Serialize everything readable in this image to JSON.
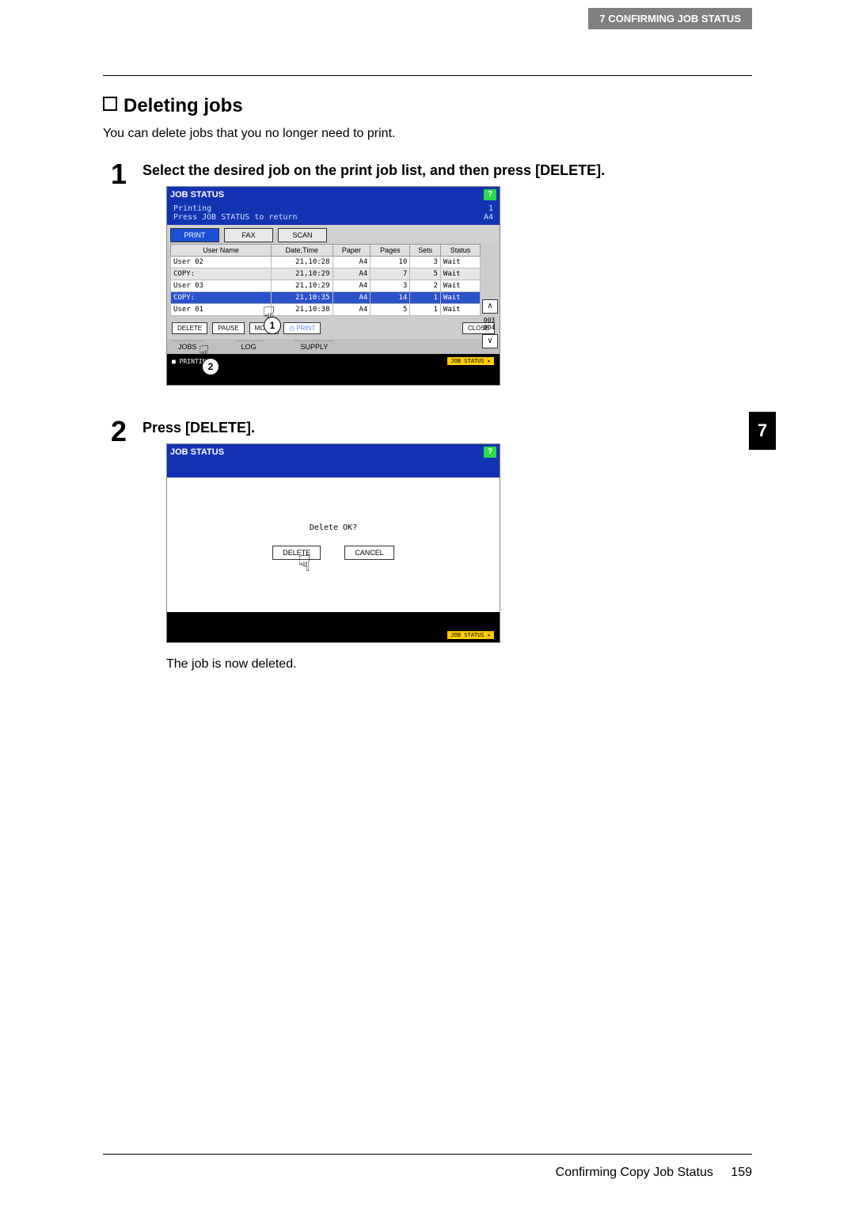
{
  "header_chapter": "7  CONFIRMING JOB STATUS",
  "section_title": "Deleting jobs",
  "intro": "You can delete jobs that you no longer need to print.",
  "steps": {
    "1": "Select the desired job on the print job list, and then press [DELETE].",
    "2": "Press [DELETE]."
  },
  "result_text": "The job is now deleted.",
  "side_tab": "7",
  "footer_title": "Confirming Copy Job Status",
  "footer_page": "159",
  "shot1": {
    "title": "JOB STATUS",
    "sub1": "Printing",
    "sub2": "Press JOB STATUS to return",
    "sub_right1": "1",
    "sub_right2": "A4",
    "tabs": [
      "PRINT",
      "FAX",
      "SCAN"
    ],
    "cols": [
      "User Name",
      "Date,Time",
      "Paper",
      "Pages",
      "Sets",
      "Status"
    ],
    "rows": [
      {
        "u": "User 02",
        "d": "21,10:28",
        "p": "A4",
        "pg": "10",
        "s": "3",
        "st": "Wait",
        "alt": false,
        "sel": false
      },
      {
        "u": "COPY:",
        "d": "21,10:29",
        "p": "A4",
        "pg": "7",
        "s": "5",
        "st": "Wait",
        "alt": true,
        "sel": false
      },
      {
        "u": "User 03",
        "d": "21,10:29",
        "p": "A4",
        "pg": "3",
        "s": "2",
        "st": "Wait",
        "alt": false,
        "sel": false
      },
      {
        "u": "COPY:",
        "d": "21,10:35",
        "p": "A4",
        "pg": "14",
        "s": "1",
        "st": "Wait",
        "alt": false,
        "sel": true
      },
      {
        "u": "User 01",
        "d": "21,10:38",
        "p": "A4",
        "pg": "5",
        "s": "1",
        "st": "Wait",
        "alt": false,
        "sel": false
      }
    ],
    "scroll_counter": "003\n004",
    "buttons": [
      "DELETE",
      "PAUSE",
      "MOVE",
      "PRINT",
      "CLOSE"
    ],
    "bottom_tabs": [
      "JOBS",
      "LOG",
      "SUPPLY"
    ],
    "status_left": "■ PRINTING",
    "status_btn": "JOB STATUS"
  },
  "shot2": {
    "title": "JOB STATUS",
    "msg": "Delete OK?",
    "btns": [
      "DELETE",
      "CANCEL"
    ],
    "status_btn": "JOB STATUS"
  }
}
